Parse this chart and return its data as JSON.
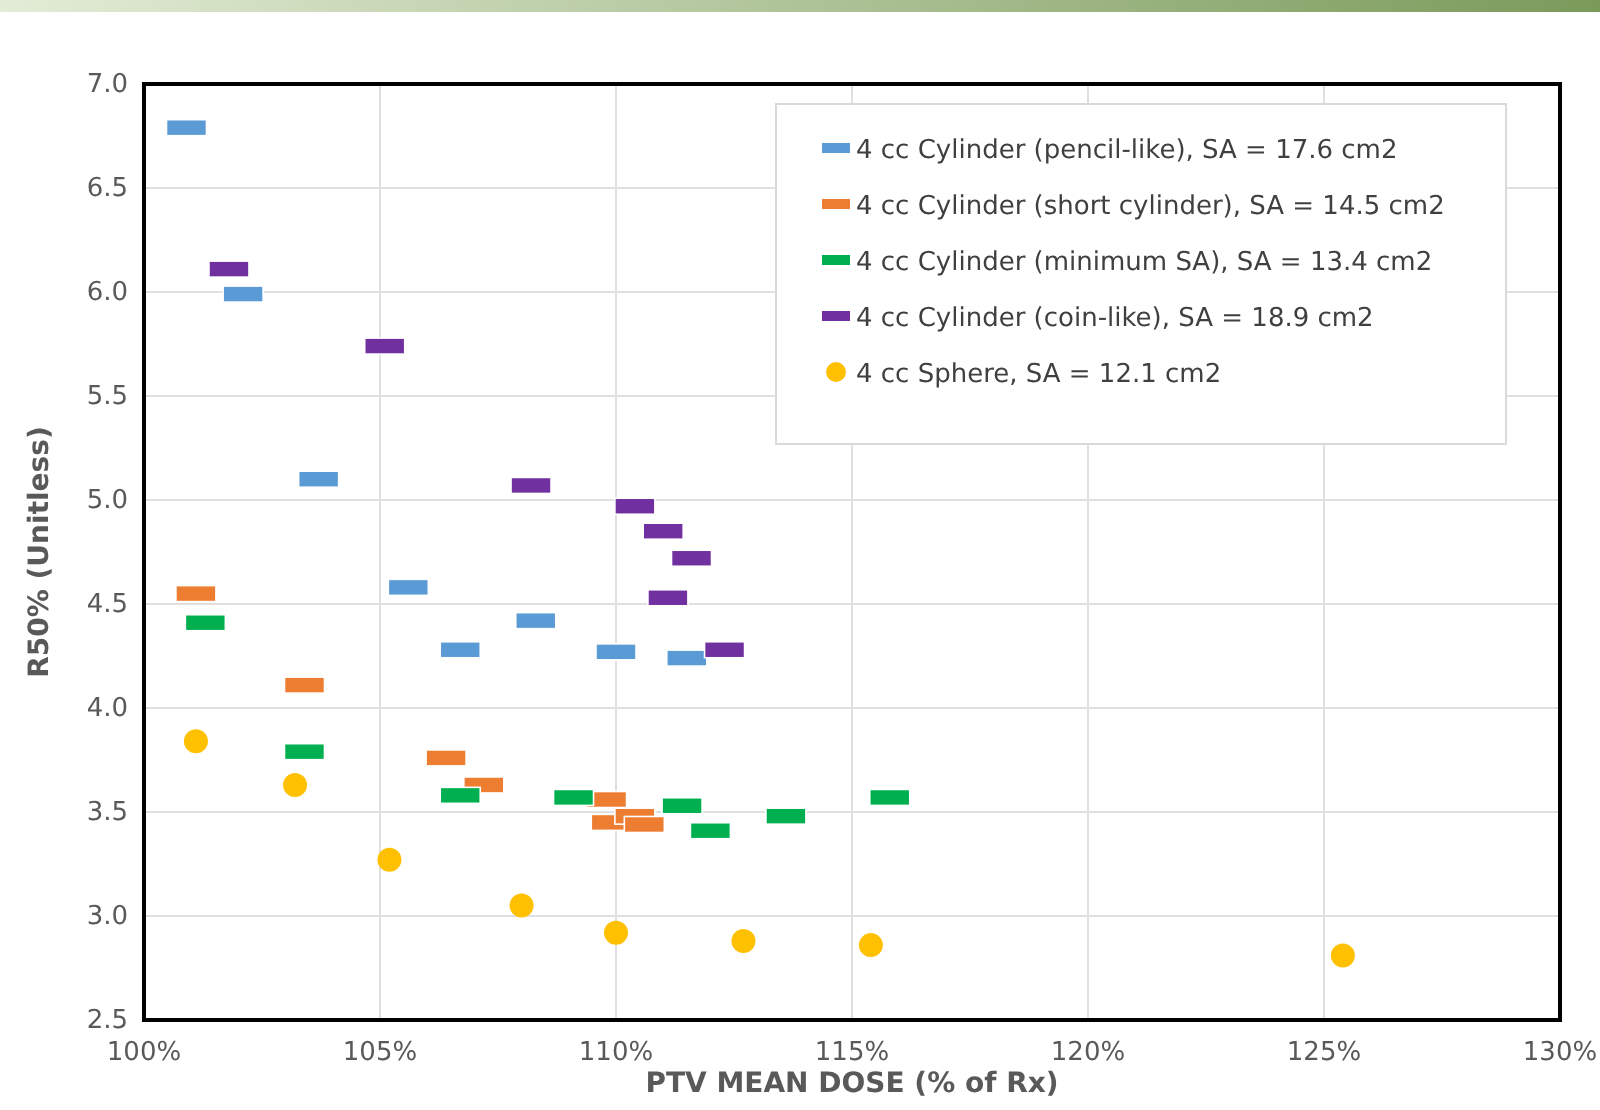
{
  "chart_data": {
    "type": "scatter",
    "xlabel": "PTV MEAN DOSE (% of Rx)",
    "ylabel": "R50% (Unitless)",
    "xlim": [
      100,
      130
    ],
    "xticks": [
      {
        "value": 100,
        "label": "100%"
      },
      {
        "value": 105,
        "label": "105%"
      },
      {
        "value": 110,
        "label": "110%"
      },
      {
        "value": 115,
        "label": "115%"
      },
      {
        "value": 120,
        "label": "120%"
      },
      {
        "value": 125,
        "label": "125%"
      },
      {
        "value": 130,
        "label": "130%"
      }
    ],
    "ylim": [
      2.5,
      7.0
    ],
    "yticks": [
      {
        "value": 2.5,
        "label": "2.5"
      },
      {
        "value": 3,
        "label": "3.0"
      },
      {
        "value": 3.5,
        "label": "3.5"
      },
      {
        "value": 4,
        "label": "4.0"
      },
      {
        "value": 4.5,
        "label": "4.5"
      },
      {
        "value": 5,
        "label": "5.0"
      },
      {
        "value": 5.5,
        "label": "5.5"
      },
      {
        "value": 6,
        "label": "6.0"
      },
      {
        "value": 6.5,
        "label": "6.5"
      },
      {
        "value": 7,
        "label": "7.0"
      }
    ],
    "grid": true,
    "legend": "top right",
    "series": [
      {
        "name": "4 cc Cylinder (pencil-like), SA = 17.6 cm2",
        "color": "#5b9bd5",
        "marker": "square",
        "x": [
          100.9,
          102.1,
          103.7,
          105.6,
          106.7,
          108.3,
          110.0,
          111.5
        ],
        "values": [
          6.79,
          5.99,
          5.1,
          4.58,
          4.28,
          4.42,
          4.27,
          4.24
        ]
      },
      {
        "name": "4 cc Cylinder (short cylinder), SA = 14.5 cm2",
        "color": "#ed7d31",
        "marker": "square",
        "x": [
          101.1,
          103.4,
          106.4,
          107.2,
          109.8,
          109.9,
          110.4,
          110.6
        ],
        "values": [
          4.55,
          4.11,
          3.76,
          3.63,
          3.56,
          3.45,
          3.48,
          3.44
        ]
      },
      {
        "name": "4 cc Cylinder (minimum SA), SA = 13.4 cm2",
        "color": "#00b050",
        "marker": "square",
        "x": [
          101.3,
          103.4,
          106.7,
          109.1,
          111.4,
          112.0,
          113.6,
          115.8
        ],
        "values": [
          4.41,
          3.79,
          3.58,
          3.57,
          3.53,
          3.41,
          3.48,
          3.57
        ]
      },
      {
        "name": "4 cc Cylinder (coin-like), SA = 18.9 cm2",
        "color": "#7030a0",
        "marker": "square",
        "x": [
          101.8,
          105.1,
          108.2,
          110.4,
          111.0,
          111.6,
          111.1,
          112.3
        ],
        "values": [
          6.11,
          5.74,
          5.07,
          4.97,
          4.85,
          4.72,
          4.53,
          4.28
        ]
      },
      {
        "name": "4 cc Sphere, SA = 12.1 cm2",
        "color": "#ffc000",
        "marker": "circle",
        "x": [
          101.1,
          103.2,
          105.2,
          108.0,
          110.0,
          112.7,
          115.4,
          125.4
        ],
        "values": [
          3.84,
          3.63,
          3.27,
          3.05,
          2.92,
          2.88,
          2.86,
          2.81
        ]
      }
    ]
  }
}
